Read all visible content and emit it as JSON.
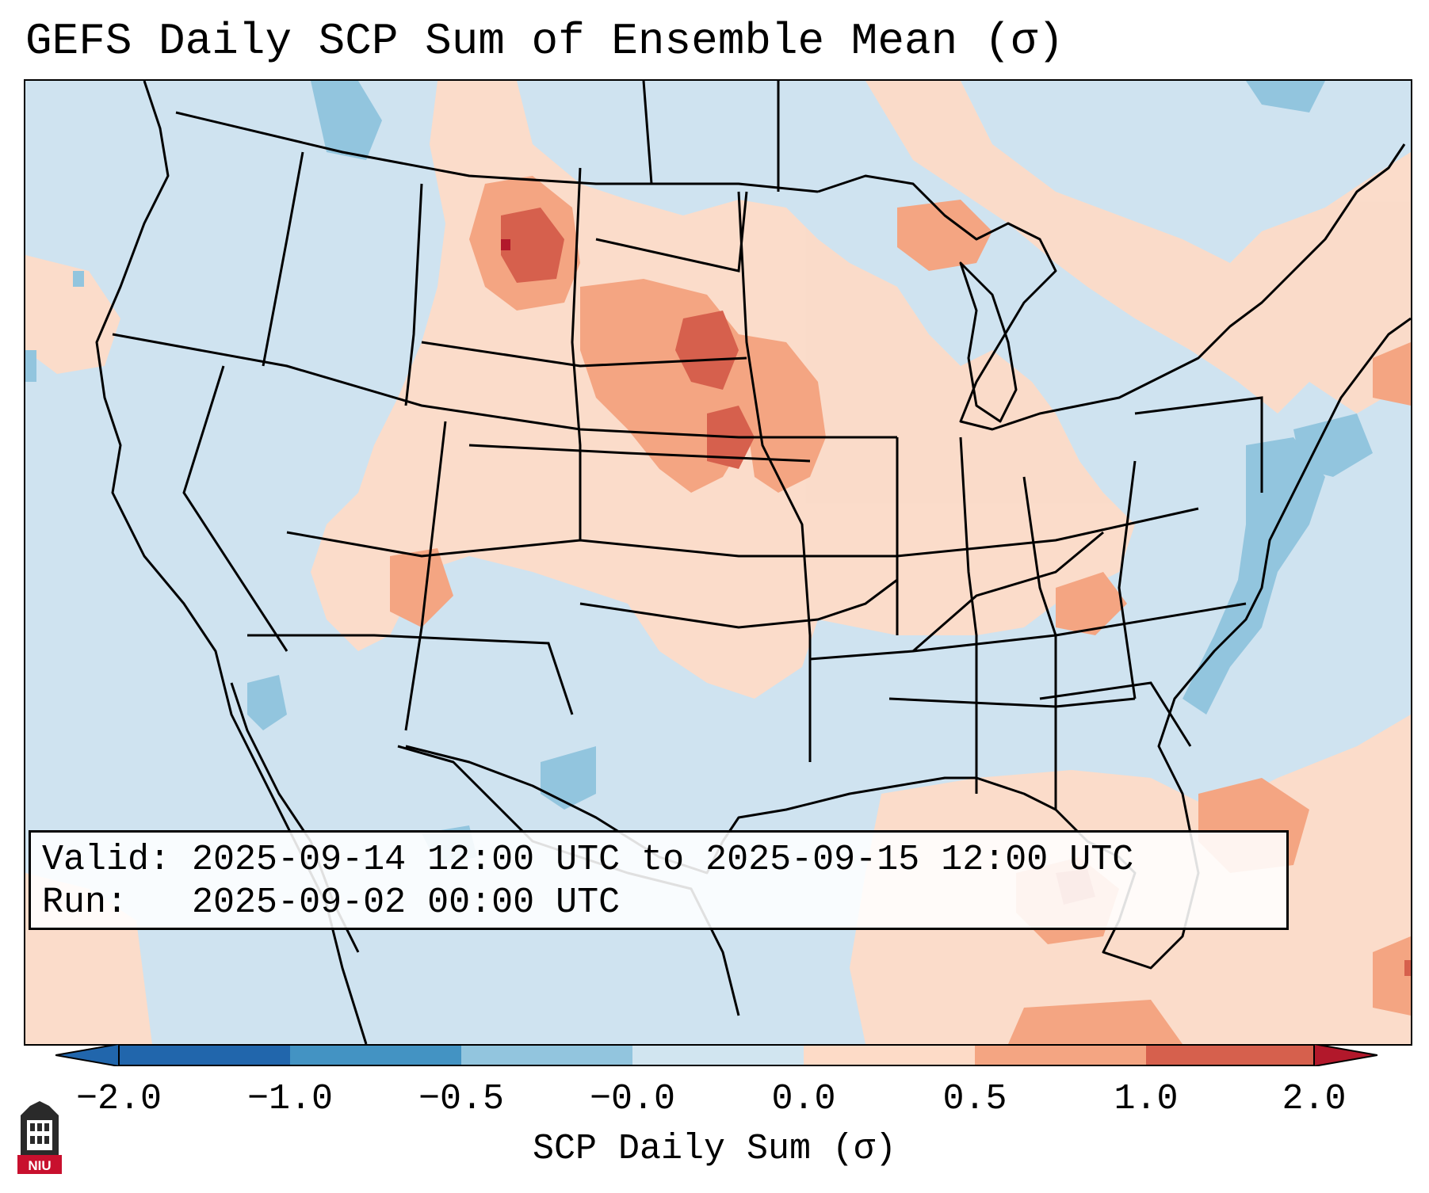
{
  "title": "GEFS Daily SCP Sum of Ensemble Mean (σ)",
  "info_box": {
    "valid_label": "Valid:",
    "valid_value": "2025-09-14 12:00 UTC to 2025-09-15 12:00 UTC",
    "run_label": "Run:",
    "run_value": "2025-09-02 00:00 UTC"
  },
  "colorbar": {
    "label": "SCP Daily Sum (σ)",
    "ticks": [
      "−2.0",
      "−1.0",
      "−0.5",
      "−0.0",
      "0.0",
      "0.5",
      "1.0",
      "2.0"
    ],
    "colors": [
      "#2166ac",
      "#4393c3",
      "#92c5de",
      "#d1e5f0",
      "#f7f7f7",
      "#fddbc7",
      "#f4a582",
      "#d6604d",
      "#b2182b"
    ]
  },
  "logo": {
    "text": "NIU"
  }
}
